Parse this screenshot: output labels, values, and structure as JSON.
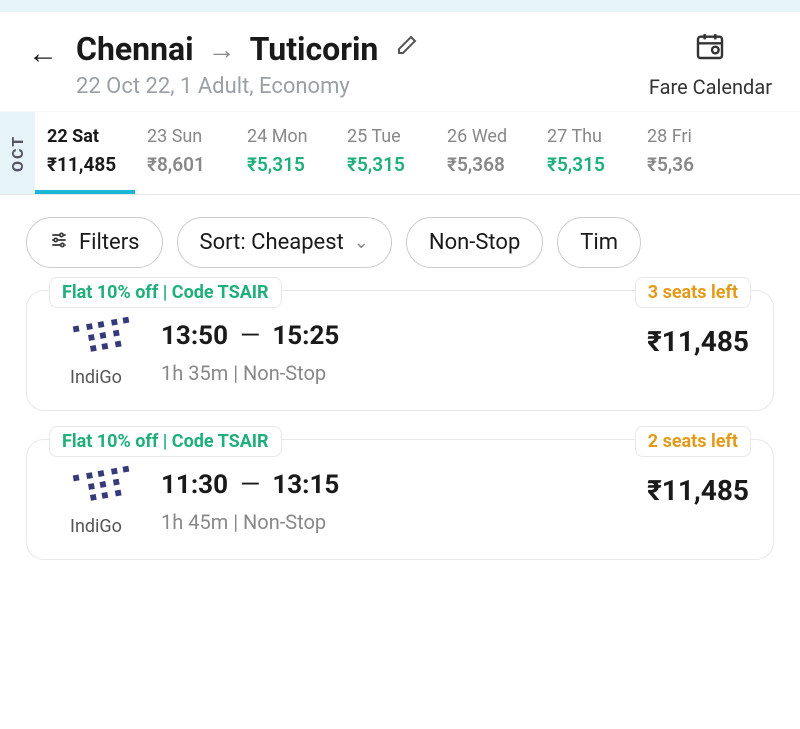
{
  "header": {
    "origin": "Chennai",
    "destination": "Tuticorin",
    "subtitle": "22 Oct 22, 1 Adult, Economy",
    "fare_calendar_label": "Fare Calendar"
  },
  "date_strip": {
    "month": "OCT",
    "items": [
      {
        "label": "22 Sat",
        "price": "₹11,485",
        "selected": true,
        "cheap": false
      },
      {
        "label": "23 Sun",
        "price": "₹8,601",
        "selected": false,
        "cheap": false
      },
      {
        "label": "24 Mon",
        "price": "₹5,315",
        "selected": false,
        "cheap": true
      },
      {
        "label": "25 Tue",
        "price": "₹5,315",
        "selected": false,
        "cheap": true
      },
      {
        "label": "26 Wed",
        "price": "₹5,368",
        "selected": false,
        "cheap": false
      },
      {
        "label": "27 Thu",
        "price": "₹5,315",
        "selected": false,
        "cheap": true
      },
      {
        "label": "28 Fri",
        "price": "₹5,36",
        "selected": false,
        "cheap": false
      }
    ]
  },
  "chips": {
    "filters": "Filters",
    "sort": "Sort: Cheapest",
    "nonstop": "Non-Stop",
    "time": "Tim"
  },
  "results": [
    {
      "promo": "Flat 10% off | Code TSAIR",
      "seats": "3 seats left",
      "airline": "IndiGo",
      "depart": "13:50",
      "arrive": "15:25",
      "duration": "1h 35m | Non-Stop",
      "price": "₹11,485"
    },
    {
      "promo": "Flat 10% off | Code TSAIR",
      "seats": "2 seats left",
      "airline": "IndiGo",
      "depart": "11:30",
      "arrive": "13:15",
      "duration": "1h 45m | Non-Stop",
      "price": "₹11,485"
    }
  ],
  "colors": {
    "cheap_price": "#1eaf7a",
    "selected_underline": "#19b6d6",
    "promo_text": "#1eaf7a",
    "seats_text": "#e39a18",
    "airline_logo": "#373a7a",
    "month_bg": "#e6f4fa"
  }
}
